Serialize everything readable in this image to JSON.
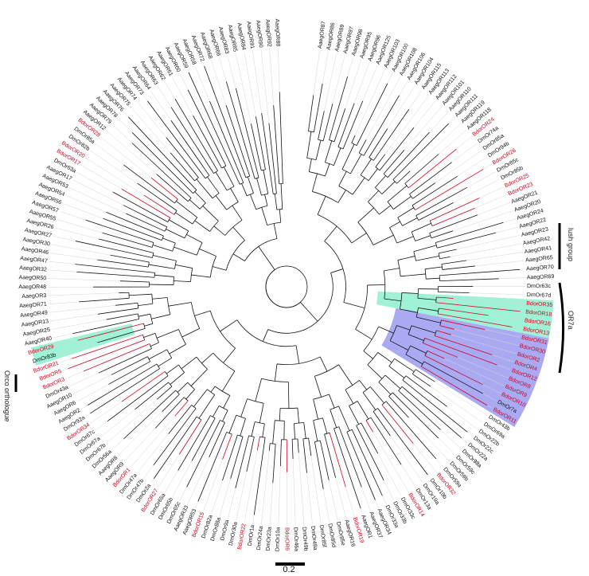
{
  "colors": {
    "branch": "#111111",
    "bdor": "#d0021b",
    "green": "#8ff0cf",
    "blue": "#9b9bf0",
    "guide": "#d6d6d6"
  },
  "labels": [
    "AaegOR87",
    "AaegOR86",
    "AaegOR89",
    "AaegOR97",
    "AaegOR98",
    "AaegOR95",
    "AaegOR96",
    "AaegOR125",
    "AaegOR103",
    "AaegOR100",
    "AaegOR108",
    "AaegOR106",
    "AaegOR104",
    "AaegOR115",
    "AaegOR113",
    "AaegOR112",
    "AaegOR101",
    "AaegOR110",
    "AaegOR111",
    "AaegOR119",
    "AaegOR118",
    "BdorOR24",
    "DmOr74a",
    "DmOr85a",
    "DmOr94b",
    "BdorOR26",
    "DmOr85c",
    "DmOr85b",
    "BdorOR25",
    "BdorOR23",
    "AaegOR21",
    "AaegOR20",
    "AaegOR24",
    "AaegOR22",
    "AaegOR23",
    "AaegOR42",
    "AaegOR41",
    "AaegOR65",
    "AaegOR70",
    "AaegOR69",
    "DmOr63c",
    "DmOr67d",
    "BdorOR35",
    "BdorOR18",
    "BdorOR16",
    "BdorOR13",
    "BdorOR31",
    "BdorOR30",
    "BdorOR2",
    "BdorOR4",
    "BdorOR12",
    "BdorOR8",
    "BdorOR9",
    "BdorOR10",
    "DmOr7a",
    "BdorOR11",
    "DmOr43b",
    "DmOr69a",
    "DmOr22b",
    "DmOr22c",
    "DmOr22a",
    "DmOr98a",
    "DmOr59c",
    "DmOr59b",
    "DmOr59a",
    "BdorOR32",
    "DmOr19b",
    "DmOr19a",
    "DmOr13a",
    "BdorOR14",
    "DmOr33c",
    "DmOr33b",
    "DmOr33a",
    "AaegOR34",
    "AaegOR37",
    "AaegOR1",
    "BdorOR19",
    "AaegOR16",
    "DmOr85e",
    "DmOr85d",
    "DmOr85f",
    "DmOr49a",
    "DmOr49b",
    "DmOr46a",
    "BdorOR6",
    "DmOr10a",
    "DmOr23a",
    "DmOr24a",
    "DmOr1a",
    "BdorOR22",
    "DmOr30a",
    "DmOr9a",
    "DmOr88a",
    "DmOr82a",
    "BdorOR15",
    "AaegOR53",
    "AaegOR33",
    "DmOr65c",
    "DmOr65b",
    "DmOr65a",
    "BdorOR27",
    "DmOr2a",
    "DmOr47b",
    "DmOr47a",
    "BdorOR1",
    "AaegOR9",
    "AaegOR8",
    "DmOr56a",
    "DmOr67b",
    "DmOr67a",
    "DmOr67c",
    "BdorOR34",
    "DmOr92a",
    "AaegOR2",
    "AaegOR6",
    "AaegOR10",
    "DmOr43a",
    "BdorOR3",
    "BdorOR5",
    "BdorOR21",
    "DmOr83b",
    "BdorOR29",
    "AaegOR40",
    "AaegOR25",
    "AaegOR13",
    "AaegOR49",
    "AaegOR71",
    "AaegOR3",
    "AaegOR48",
    "AaegOR50",
    "AaegOR32",
    "AaegOR47",
    "AaegOR46",
    "AaegOR30",
    "AaegOR27",
    "AaegOR26",
    "AaegOR55",
    "AaegOR57",
    "AaegOR56",
    "AaegOR54",
    "AaegOR53",
    "AaegOR17",
    "DmOr63a",
    "BdorOR17",
    "BdorOR20",
    "DmOr82b",
    "DmOr85a",
    "BdorOR28",
    "AaegOR12",
    "AaegOR79",
    "AaegOR78",
    "AaegOR76",
    "AaegOR75",
    "AaegOR74",
    "AaegOR73",
    "AaegOR64",
    "AaegOR63",
    "AaegOR62",
    "AaegOR61",
    "AaegOR60",
    "AaegOR59",
    "AaegOR58",
    "AaegOR72",
    "AaegOR68",
    "AaegOR66",
    "AaegOR83",
    "AaegOR85",
    "AaegOR84",
    "AaegOR91",
    "AaegOR90",
    "AaegOR92",
    "AaegOR88"
  ],
  "groups": [
    {
      "id": "lush",
      "text": "lush group"
    },
    {
      "id": "or7a",
      "text": "OR7a"
    },
    {
      "id": "orco",
      "text": "Orco orthologue"
    }
  ],
  "scale_bar": {
    "value": "0.2"
  }
}
